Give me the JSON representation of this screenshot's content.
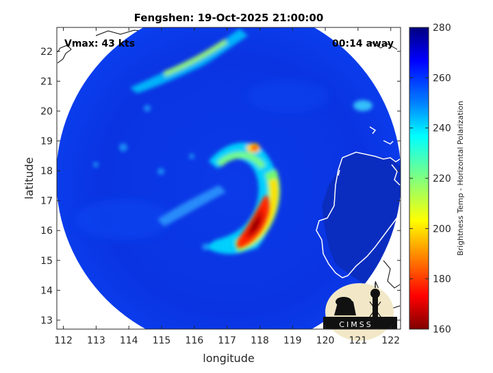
{
  "title": "Fengshen: 19-Oct-2025 21:00:00",
  "vmax_label": "Vmax: 43 kts",
  "time_label": "00:14 away",
  "x_axis": {
    "label": "longitude",
    "range": [
      111.8,
      122.3
    ],
    "ticks": [
      112,
      113,
      114,
      115,
      116,
      117,
      118,
      119,
      120,
      121,
      122
    ]
  },
  "y_axis": {
    "label": "latitude",
    "range": [
      12.7,
      22.8
    ],
    "ticks": [
      13,
      14,
      15,
      16,
      17,
      18,
      19,
      20,
      21,
      22
    ]
  },
  "colorbar": {
    "label": "Brightness Temp - Horizontal Polarization",
    "range": [
      160,
      280
    ],
    "ticks": [
      160,
      180,
      200,
      220,
      240,
      260,
      280
    ],
    "colormap": "jet"
  },
  "logo_text": "CIMSS",
  "colors": {
    "background_blue": "#0a2fe6",
    "land_outline": "#ffffff",
    "eye_core": "#8b0000"
  }
}
